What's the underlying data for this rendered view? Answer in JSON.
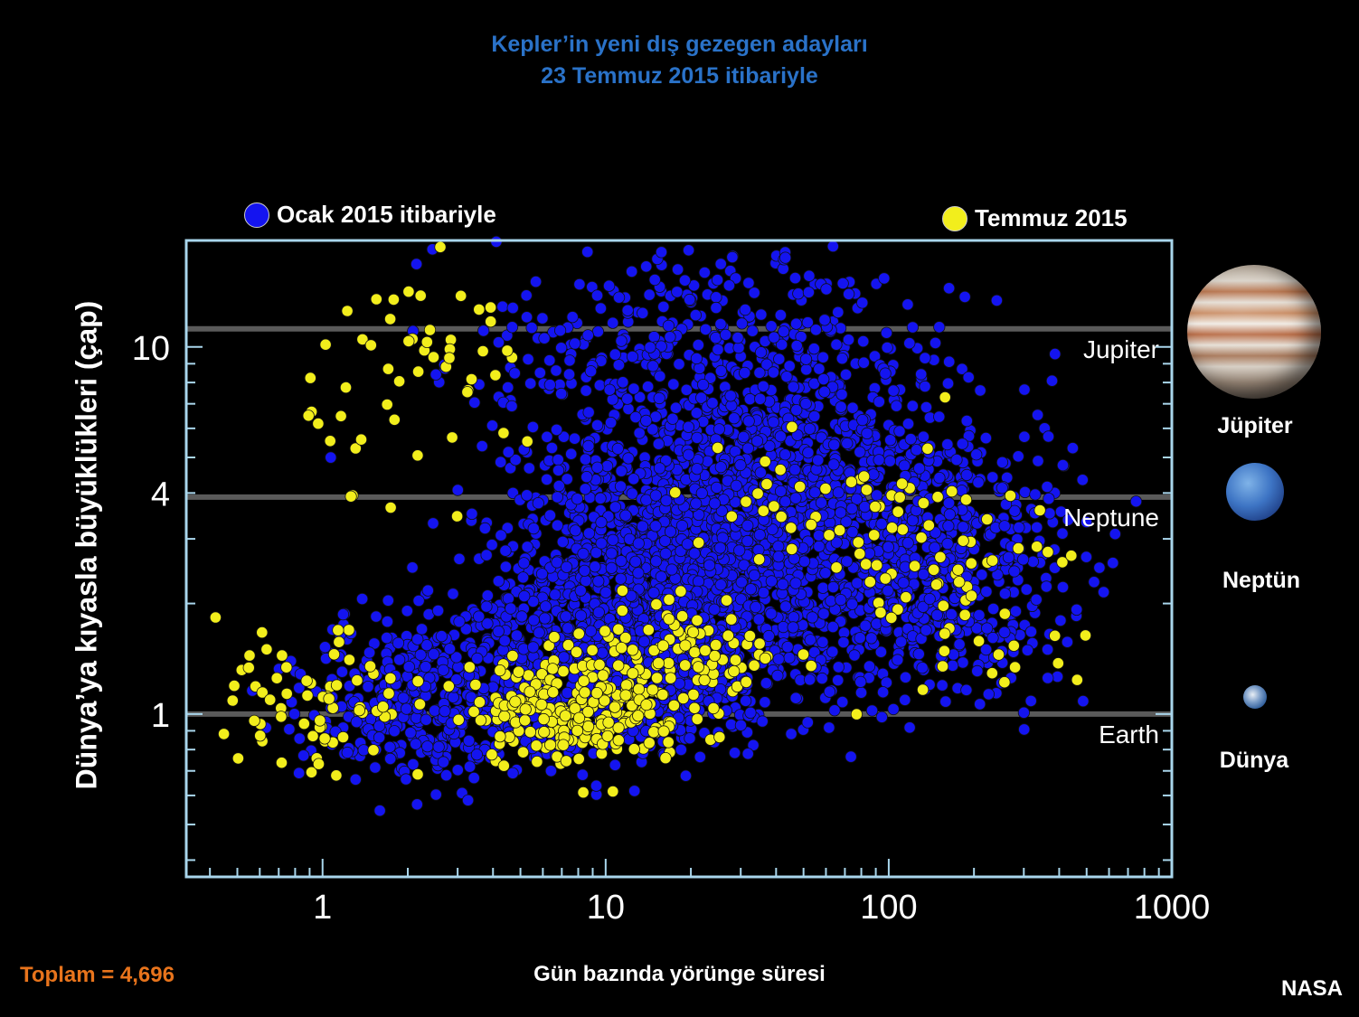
{
  "title": {
    "line1": "Kepler’in yeni dış gezegen adayları",
    "line2": "23 Temmuz 2015 itibariyle"
  },
  "legend": {
    "jan": "Ocak 2015 itibariyle",
    "jul": "Temmuz 2015"
  },
  "total": "Toplam = 4,696",
  "credit": "NASA",
  "planets": {
    "jupiter": "Jüpiter",
    "neptune": "Neptün",
    "earth": "Dünya"
  },
  "colors": {
    "background": "#000000",
    "title": "#2a72c8",
    "series_jan": "#1414f0",
    "series_jul": "#f2ee1c",
    "plot_border": "#a9d6ec",
    "reference_line": "#5a5a5a",
    "total": "#e8741c"
  },
  "chart_data": {
    "type": "scatter",
    "title": "Kepler’in yeni dış gezegen adayları 23 Temmuz 2015 itibariyle",
    "xlabel": "Gün bazında yörünge süresi",
    "ylabel": "Dünya’ya kıyasla büyüklükleri (çap)",
    "xscale": "log",
    "yscale": "log",
    "xlim": [
      0.33,
      1000
    ],
    "ylim": [
      0.36,
      19.5
    ],
    "xticks": [
      1,
      10,
      100,
      1000
    ],
    "xtick_labels": [
      "1",
      "10",
      "100",
      "1000"
    ],
    "yticks": [
      1,
      4,
      10
    ],
    "ytick_labels": [
      "1",
      "4",
      "10"
    ],
    "grid": false,
    "legend_position": "top",
    "reference_lines": [
      {
        "y": 11.2,
        "label": "Jupiter"
      },
      {
        "y": 3.9,
        "label": "Neptune"
      },
      {
        "y": 1.0,
        "label": "Earth"
      }
    ],
    "series": [
      {
        "name": "Ocak 2015 itibariyle",
        "count_drawn_approx": 4100,
        "clusters": [
          {
            "x_center": 20,
            "x_spread_decades": 0.55,
            "y_center": 2.6,
            "y_spread_decades": 0.14,
            "weight": 0.3
          },
          {
            "x_center": 12,
            "x_spread_decades": 0.6,
            "y_center": 1.35,
            "y_spread_decades": 0.14,
            "weight": 0.22
          },
          {
            "x_center": 130,
            "x_spread_decades": 0.45,
            "y_center": 2.3,
            "y_spread_decades": 0.17,
            "weight": 0.14
          },
          {
            "x_center": 2.5,
            "x_spread_decades": 0.4,
            "y_center": 1.1,
            "y_spread_decades": 0.14,
            "weight": 0.1
          },
          {
            "x_center": 25,
            "x_spread_decades": 0.75,
            "y_center": 9.0,
            "y_spread_decades": 0.2,
            "weight": 0.12
          },
          {
            "x_center": 40,
            "x_spread_decades": 0.7,
            "y_center": 4.8,
            "y_spread_decades": 0.12,
            "weight": 0.12
          }
        ]
      },
      {
        "name": "Temmuz 2015",
        "count_drawn_approx": 560,
        "clusters": [
          {
            "x_center": 8,
            "x_spread_decades": 0.35,
            "y_center": 1.05,
            "y_spread_decades": 0.09,
            "weight": 0.45
          },
          {
            "x_center": 20,
            "x_spread_decades": 0.3,
            "y_center": 1.5,
            "y_spread_decades": 0.09,
            "weight": 0.15
          },
          {
            "x_center": 0.9,
            "x_spread_decades": 0.3,
            "y_center": 1.0,
            "y_spread_decades": 0.14,
            "weight": 0.12
          },
          {
            "x_center": 2.5,
            "x_spread_decades": 0.4,
            "y_center": 9.0,
            "y_spread_decades": 0.18,
            "weight": 0.1
          },
          {
            "x_center": 200,
            "x_spread_decades": 0.45,
            "y_center": 2.0,
            "y_spread_decades": 0.2,
            "weight": 0.1
          },
          {
            "x_center": 60,
            "x_spread_decades": 0.55,
            "y_center": 3.3,
            "y_spread_decades": 0.12,
            "weight": 0.08
          }
        ]
      }
    ]
  }
}
